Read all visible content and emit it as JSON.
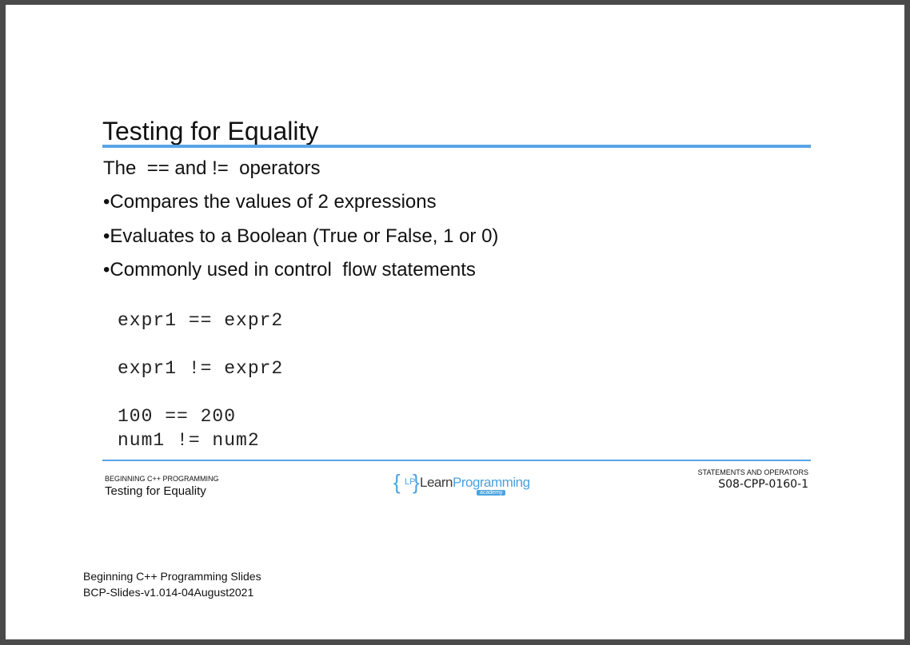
{
  "slide": {
    "title": "Testing for Equality",
    "lines": [
      "The  == and !=  operators",
      "•Compares the values of 2 expressions",
      "•Evaluates to a Boolean (True or False, 1 or 0)",
      "•Commonly used in control  flow statements"
    ],
    "code": [
      "expr1 == expr2",
      "expr1 != expr2",
      "100 == 200",
      "num1 != num2"
    ]
  },
  "footer": {
    "course_small": "BEGINNING C++ PROGRAMMING",
    "course_topic": "Testing for Equality",
    "logo_lp": "LP",
    "logo_learn": "Learn",
    "logo_programming": "Programming",
    "logo_academy": "academy",
    "section_small": "STATEMENTS AND OPERATORS",
    "slide_id": "S08-CPP-0160-1"
  },
  "meta": {
    "line1": "Beginning C++ Programming Slides",
    "line2": "BCP-Slides-v1.014-04August2021"
  },
  "colors": {
    "accent": "#5aa5e6",
    "background": "#4a4a4a"
  }
}
